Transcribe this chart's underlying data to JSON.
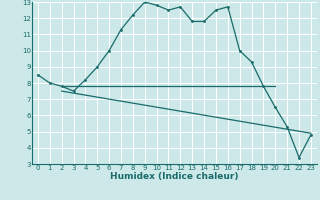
{
  "xlabel": "Humidex (Indice chaleur)",
  "bg_color": "#cce8e8",
  "line_color": "#1a6b6b",
  "grid_color": "#ffffff",
  "xlim": [
    -0.5,
    23.5
  ],
  "ylim": [
    3,
    13
  ],
  "xticks": [
    0,
    1,
    2,
    3,
    4,
    5,
    6,
    7,
    8,
    9,
    10,
    11,
    12,
    13,
    14,
    15,
    16,
    17,
    18,
    19,
    20,
    21,
    22,
    23
  ],
  "yticks": [
    3,
    4,
    5,
    6,
    7,
    8,
    9,
    10,
    11,
    12,
    13
  ],
  "line1_x": [
    0,
    1,
    2,
    3,
    4,
    5,
    6,
    7,
    8,
    9,
    10,
    11,
    12,
    13,
    14,
    15,
    16,
    17,
    18,
    19,
    20,
    21,
    22,
    23
  ],
  "line1_y": [
    8.5,
    8.0,
    7.8,
    7.5,
    8.2,
    9.0,
    10.0,
    11.3,
    12.2,
    13.0,
    12.8,
    12.5,
    12.7,
    11.8,
    11.8,
    12.5,
    12.7,
    10.0,
    9.3,
    7.8,
    6.5,
    5.3,
    3.4,
    4.8
  ],
  "line2_x": [
    2,
    20
  ],
  "line2_y": [
    7.8,
    7.8
  ],
  "line3_x": [
    2,
    23
  ],
  "line3_y": [
    7.5,
    4.9
  ],
  "tick_fontsize": 5.0,
  "xlabel_fontsize": 6.5
}
